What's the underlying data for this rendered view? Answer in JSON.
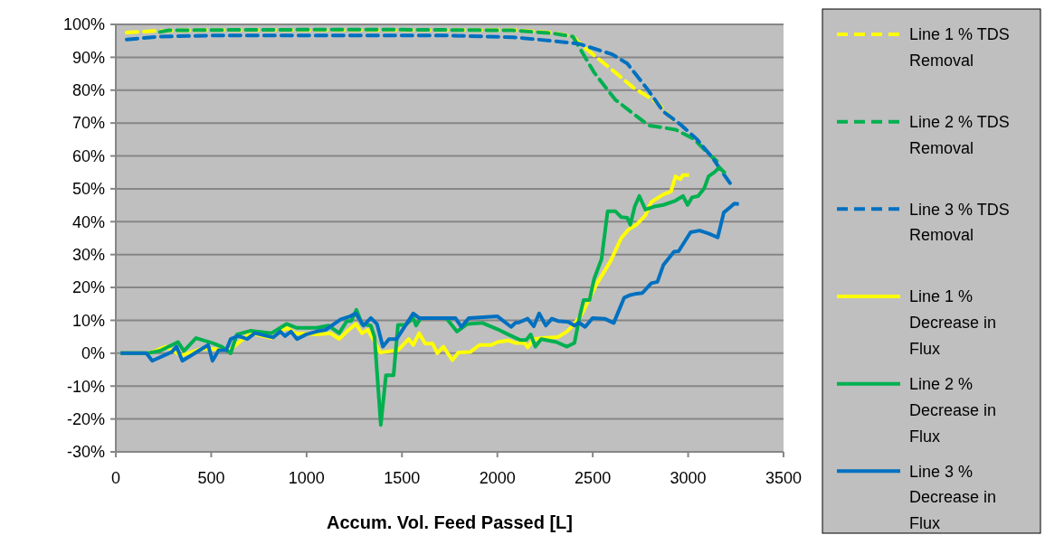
{
  "chart_data": {
    "type": "line",
    "xlabel": "Accum. Vol. Feed Passed [L]",
    "xlim": [
      0,
      3500
    ],
    "xticks": [
      0,
      500,
      1000,
      1500,
      2000,
      2500,
      3000,
      3500
    ],
    "ylim": [
      -30,
      100
    ],
    "yticks": [
      {
        "value": -30,
        "label": "-30%"
      },
      {
        "value": -20,
        "label": "-20%"
      },
      {
        "value": -10,
        "label": "-10%"
      },
      {
        "value": 0,
        "label": "0%"
      },
      {
        "value": 10,
        "label": "10%"
      },
      {
        "value": 20,
        "label": "20%"
      },
      {
        "value": 30,
        "label": "30%"
      },
      {
        "value": 40,
        "label": "40%"
      },
      {
        "value": 50,
        "label": "50%"
      },
      {
        "value": 60,
        "label": "60%"
      },
      {
        "value": 70,
        "label": "70%"
      },
      {
        "value": 80,
        "label": "80%"
      },
      {
        "value": 90,
        "label": "90%"
      },
      {
        "value": 100,
        "label": "100%"
      }
    ],
    "grid": "y",
    "legend": "right",
    "marker": "none",
    "series": [
      {
        "name": "Line 1 % TDS Removal",
        "color": "#ffff00",
        "line_style": "dashed",
        "x": [
          57,
          199,
          500,
          1000,
          1500,
          2080,
          2286,
          2396,
          2460,
          2618,
          2712,
          2839,
          2916
        ],
        "values": [
          97.5,
          98,
          98.3,
          98.3,
          98.3,
          98.3,
          97.5,
          96.3,
          92.8,
          85.4,
          80.8,
          76.2,
          71.2
        ]
      },
      {
        "name": "Line 2 % TDS Removal",
        "color": "#00b050",
        "line_style": "dashed",
        "x": [
          231,
          278,
          500,
          1000,
          1500,
          2080,
          2286,
          2396,
          2507,
          2618,
          2792,
          2934,
          3029,
          3124,
          3150
        ],
        "values": [
          97.7,
          98.2,
          98.3,
          98.4,
          98.4,
          98.2,
          97.3,
          96.3,
          85.4,
          77.1,
          69.3,
          68,
          65.2,
          59.7,
          58.5
        ]
      },
      {
        "name": "Line 3 % TDS Removal",
        "color": "#0070c0",
        "line_style": "dashed",
        "x": [
          57,
          231,
          500,
          1000,
          1500,
          1764,
          2080,
          2286,
          2428,
          2602,
          2681,
          2792,
          2870,
          2965,
          3044,
          3124,
          3234
        ],
        "values": [
          95.4,
          96.3,
          96.6,
          96.6,
          96.6,
          96.6,
          96.1,
          95,
          94.1,
          90.9,
          88.1,
          79.9,
          73.5,
          69.3,
          65.2,
          59.7,
          50.5
        ]
      },
      {
        "name": "Line 1 % Decrease in Flux",
        "color": "#ffff00",
        "line_style": "solid",
        "x": [
          25,
          176,
          262,
          341,
          436,
          484,
          594,
          705,
          816,
          895,
          942,
          1053,
          1124,
          1171,
          1211,
          1258,
          1290,
          1321,
          1353,
          1385,
          1479,
          1535,
          1559,
          1590,
          1622,
          1661,
          1685,
          1717,
          1764,
          1796,
          1859,
          1906,
          1969,
          2001,
          2057,
          2096,
          2143,
          2159,
          2191,
          2238,
          2317,
          2365,
          2404,
          2444,
          2483,
          2523,
          2594,
          2649,
          2689,
          2729,
          2776,
          2807,
          2870,
          2910,
          2934,
          2958,
          2973,
          3005
        ],
        "values": [
          0,
          0,
          2,
          -0.7,
          1.1,
          1.4,
          0.9,
          6.1,
          4.6,
          7.7,
          6.1,
          5.7,
          6.1,
          4.3,
          6.6,
          8.9,
          6.1,
          7.1,
          3.9,
          0.2,
          0.9,
          4.3,
          2.5,
          6.1,
          2.9,
          2.9,
          0,
          2,
          -2.1,
          0.2,
          0.4,
          2.5,
          2.5,
          3.4,
          3.9,
          3.1,
          3.1,
          1.8,
          4.3,
          4.6,
          4.9,
          6.6,
          8.9,
          12.1,
          16.7,
          21.3,
          28.1,
          35,
          37.7,
          39.1,
          41.9,
          46,
          48.3,
          49.2,
          53.8,
          52.9,
          54.2,
          54.2
        ]
      },
      {
        "name": "Line 2 % Decrease in Flux",
        "color": "#00b050",
        "line_style": "solid",
        "x": [
          25,
          167,
          231,
          326,
          357,
          420,
          507,
          555,
          602,
          634,
          705,
          816,
          895,
          950,
          1053,
          1116,
          1171,
          1211,
          1234,
          1261,
          1290,
          1337,
          1356,
          1389,
          1416,
          1456,
          1479,
          1519,
          1559,
          1574,
          1598,
          1732,
          1788,
          1843,
          1922,
          2001,
          2057,
          2120,
          2151,
          2175,
          2199,
          2230,
          2309,
          2365,
          2404,
          2428,
          2452,
          2483,
          2507,
          2546,
          2578,
          2618,
          2649,
          2681,
          2697,
          2720,
          2744,
          2776,
          2823,
          2870,
          2934,
          2973,
          2997,
          3021,
          3052,
          3084,
          3107,
          3139,
          3163,
          3195
        ],
        "values": [
          0,
          0,
          0.7,
          3.4,
          0.7,
          4.6,
          3.1,
          2,
          0,
          5.7,
          6.8,
          6.1,
          8.9,
          7.7,
          7.7,
          8.4,
          6.1,
          9.8,
          9.8,
          13.2,
          8.9,
          8.4,
          5,
          -21.8,
          -6.7,
          -6.7,
          8.6,
          8.6,
          10.7,
          8.4,
          10.7,
          10.7,
          6.6,
          8.9,
          9.2,
          7.3,
          5.7,
          4,
          4,
          5.7,
          2,
          4.3,
          3.4,
          2,
          3.1,
          10.3,
          16.2,
          16.2,
          22.6,
          28.6,
          43.2,
          43.2,
          41.4,
          41.2,
          39.1,
          44.6,
          47.8,
          43.7,
          44.6,
          45.1,
          46.4,
          47.8,
          45.1,
          47.4,
          47.8,
          50.1,
          53.8,
          55.1,
          56.5,
          54.7
        ]
      },
      {
        "name": "Line 3 % Decrease in Flux",
        "color": "#0070c0",
        "line_style": "solid",
        "x": [
          25,
          160,
          191,
          294,
          318,
          349,
          484,
          507,
          539,
          579,
          602,
          642,
          689,
          729,
          824,
          863,
          887,
          918,
          950,
          997,
          1053,
          1100,
          1179,
          1227,
          1258,
          1298,
          1337,
          1369,
          1400,
          1432,
          1472,
          1559,
          1590,
          1780,
          1811,
          1851,
          2001,
          2072,
          2096,
          2111,
          2159,
          2191,
          2219,
          2254,
          2286,
          2317,
          2372,
          2404,
          2428,
          2460,
          2499,
          2562,
          2610,
          2665,
          2697,
          2720,
          2760,
          2807,
          2839,
          2870,
          2926,
          2950,
          3013,
          3060,
          3107,
          3155,
          3187,
          3218,
          3242,
          3266
        ],
        "values": [
          0,
          0,
          -2.3,
          0.4,
          2,
          -2.3,
          2.5,
          -2.3,
          0.9,
          0.9,
          4.3,
          5.2,
          4.3,
          6.1,
          4.8,
          6.6,
          5.2,
          6.6,
          4.3,
          5.7,
          6.6,
          7.1,
          10.3,
          11.2,
          12.1,
          8.4,
          10.7,
          8.9,
          2,
          4.3,
          4.3,
          12.1,
          10.7,
          10.7,
          8,
          10.7,
          11.2,
          8,
          9.3,
          9.3,
          10.5,
          8.2,
          12.1,
          8.4,
          10.5,
          9.8,
          9.5,
          8.4,
          9.3,
          8,
          10.7,
          10.5,
          9.2,
          16.9,
          17.7,
          18,
          18.3,
          21.3,
          21.7,
          26.8,
          30.9,
          31,
          36.8,
          37.3,
          36.4,
          35.2,
          42.8,
          44.3,
          45.5,
          45.4
        ]
      }
    ]
  }
}
